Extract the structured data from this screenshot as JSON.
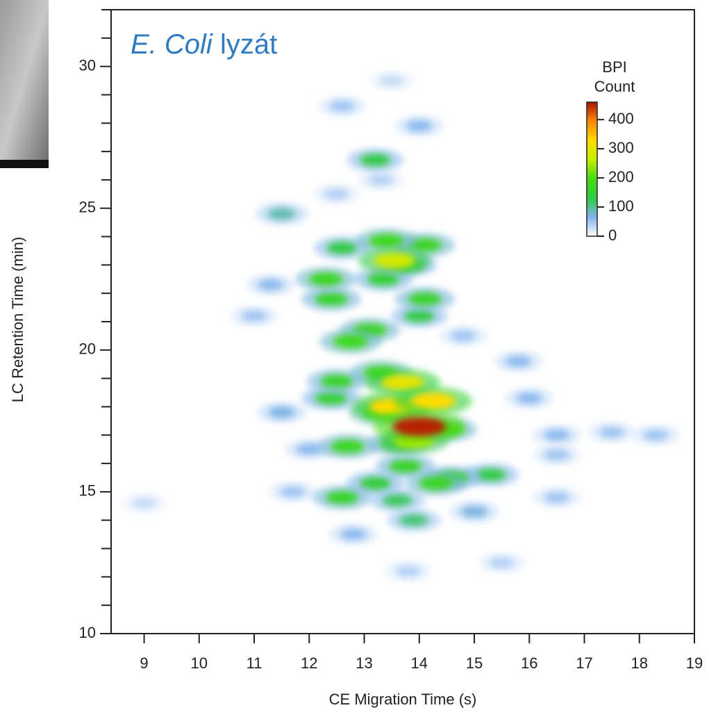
{
  "chart_data": {
    "type": "heatmap",
    "title": {
      "italic": "E. Coli",
      "text": "lyzát"
    },
    "xlabel": "CE Migration Time (s)",
    "ylabel": "LC Retention Time (min)",
    "xlim": [
      8.4,
      19
    ],
    "xticks": [
      9,
      10,
      11,
      12,
      13,
      14,
      15,
      16,
      17,
      18,
      19
    ],
    "ylim": [
      10,
      32
    ],
    "yticks": [
      10,
      15,
      20,
      25,
      30
    ],
    "yticks_minor": [
      11,
      12,
      13,
      14,
      16,
      17,
      18,
      19,
      21,
      22,
      23,
      24,
      26,
      27,
      28,
      29,
      31,
      32
    ],
    "colorbar_label": [
      "BPI",
      "Count"
    ],
    "clim": [
      0,
      460
    ],
    "cticks": [
      0,
      100,
      200,
      300,
      400
    ],
    "colormap": [
      "#ffffff",
      "#80b2ee",
      "#2ecc40",
      "#44dd11",
      "#c8ee00",
      "#ffdd00",
      "#ff8800",
      "#aa1100"
    ],
    "x": [
      9.0,
      13.5,
      12.6,
      14.0,
      11.3,
      11.0,
      16.5,
      17.5,
      18.3,
      15.8,
      16.0,
      11.5,
      12.0,
      15.0,
      16.5,
      15.5,
      13.8,
      16.5,
      11.7,
      12.5,
      13.3,
      14.8,
      12.8,
      11.5,
      13.9,
      13.2,
      15.3,
      13.6,
      12.6,
      13.35,
      13.2,
      14.0,
      13.8,
      12.4,
      14.6,
      12.5,
      12.4,
      12.6,
      14.1,
      14.1,
      13.75,
      13.1,
      12.3,
      12.7,
      14.5,
      13.6,
      14.3,
      13.4,
      12.75,
      13.3,
      13.3,
      13.9,
      13.55,
      13.7,
      13.5,
      14.25,
      14.0
    ],
    "y": [
      14.6,
      29.5,
      28.6,
      27.9,
      22.3,
      21.2,
      17.0,
      17.1,
      17.0,
      19.6,
      18.3,
      17.8,
      16.5,
      14.3,
      14.8,
      12.5,
      12.2,
      16.3,
      15.0,
      25.5,
      26.0,
      20.5,
      13.5,
      24.8,
      14.0,
      26.7,
      15.6,
      14.7,
      23.6,
      22.5,
      15.3,
      21.2,
      23.0,
      18.3,
      15.5,
      18.9,
      21.8,
      14.8,
      21.8,
      23.7,
      15.9,
      20.7,
      22.5,
      16.6,
      17.2,
      16.7,
      15.3,
      23.85,
      20.3,
      19.2,
      17.8,
      16.8,
      23.15,
      18.85,
      18.0,
      18.2,
      17.3
    ],
    "values": [
      30,
      30,
      50,
      60,
      60,
      50,
      60,
      50,
      50,
      60,
      60,
      70,
      60,
      70,
      50,
      40,
      40,
      50,
      50,
      40,
      40,
      50,
      60,
      90,
      110,
      130,
      130,
      120,
      130,
      150,
      140,
      130,
      140,
      150,
      150,
      160,
      160,
      160,
      160,
      170,
      160,
      170,
      170,
      170,
      170,
      170,
      170,
      180,
      180,
      180,
      200,
      250,
      280,
      300,
      330,
      330,
      450
    ]
  }
}
